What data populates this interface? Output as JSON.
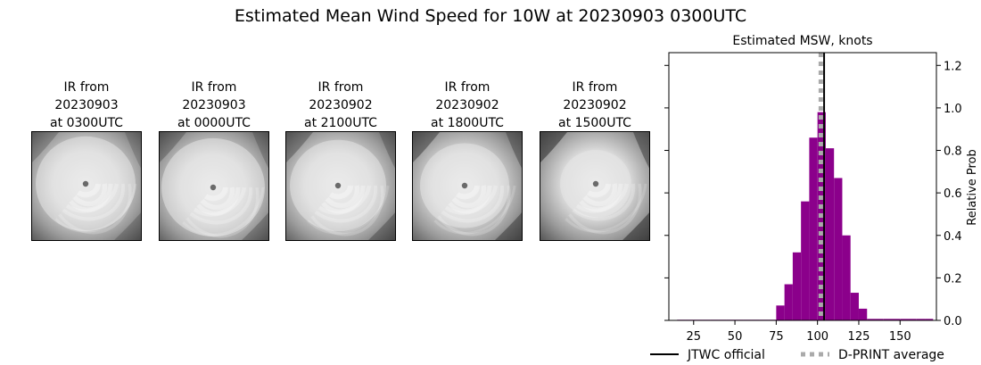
{
  "figure": {
    "title": "Estimated Mean Wind Speed for 10W at 20230903 0300UTC"
  },
  "ir_images": [
    {
      "line1": "IR from",
      "line2": "20230903",
      "line3": "at 0300UTC",
      "icon": "satellite-ir-storm-image"
    },
    {
      "line1": "IR from",
      "line2": "20230903",
      "line3": "at 0000UTC",
      "icon": "satellite-ir-storm-image"
    },
    {
      "line1": "IR from",
      "line2": "20230902",
      "line3": "at 2100UTC",
      "icon": "satellite-ir-storm-image"
    },
    {
      "line1": "IR from",
      "line2": "20230902",
      "line3": "at 1800UTC",
      "icon": "satellite-ir-storm-image"
    },
    {
      "line1": "IR from",
      "line2": "20230902",
      "line3": "at 1500UTC",
      "icon": "satellite-ir-storm-image"
    }
  ],
  "chart_data": {
    "type": "bar",
    "title": "Estimated MSW, knots",
    "xlabel": "",
    "ylabel": "Relative Prob",
    "xlim": [
      10,
      172
    ],
    "ylim": [
      0,
      1.26
    ],
    "x_ticks": [
      25,
      50,
      75,
      100,
      125,
      150
    ],
    "y_ticks": [
      0.0,
      0.2,
      0.4,
      0.6,
      0.8,
      1.0,
      1.2
    ],
    "y_tick_labels": [
      "0.0",
      "0.2",
      "0.4",
      "0.6",
      "0.8",
      "1.0",
      "1.2"
    ],
    "y_axis_side": "right",
    "bar_color": "#8b008b",
    "bin_width": 5,
    "bin_starts": [
      15,
      20,
      25,
      30,
      35,
      40,
      45,
      50,
      55,
      60,
      65,
      70,
      75,
      80,
      85,
      90,
      95,
      100,
      105,
      110,
      115,
      120,
      125,
      130,
      135,
      140,
      145,
      150,
      155,
      160,
      165
    ],
    "values": [
      0.003,
      0.003,
      0.003,
      0.003,
      0.003,
      0.003,
      0.003,
      0.003,
      0.003,
      0.003,
      0.003,
      0.003,
      0.07,
      0.17,
      0.32,
      0.56,
      0.86,
      0.98,
      0.81,
      0.67,
      0.4,
      0.13,
      0.055,
      0.007,
      0.007,
      0.007,
      0.007,
      0.007,
      0.007,
      0.007,
      0.007
    ],
    "reference_lines": [
      {
        "name": "JTWC official",
        "x": 104,
        "color": "#000000",
        "style": "solid"
      },
      {
        "name": "D-PRINT average",
        "x": 102,
        "color": "#aaaaaa",
        "style": "dotted"
      }
    ],
    "legend_placement": "bottom",
    "grid": false
  }
}
